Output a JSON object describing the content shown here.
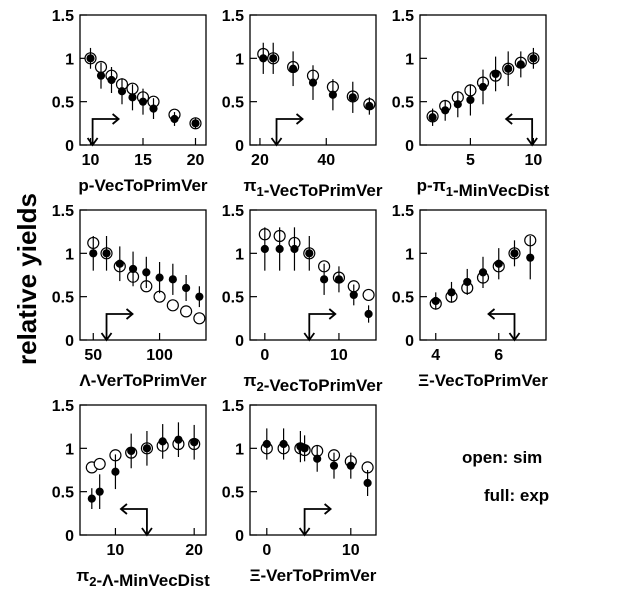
{
  "figure": {
    "ylabel": "relative yields",
    "legend_open": "open: sim",
    "legend_full": "full: exp"
  },
  "chart_data": [
    {
      "type": "scatter",
      "title": "p-VecToPrimVer",
      "xlim": [
        9,
        21
      ],
      "ylim": [
        0,
        1.5
      ],
      "xticks": [
        10,
        15,
        20
      ],
      "yticks": [
        0,
        0.5,
        1,
        1.5
      ],
      "cut": {
        "x": 10.2,
        "direction": "right"
      },
      "series": [
        {
          "name": "sim",
          "style": "open",
          "x": [
            10,
            11,
            12,
            13,
            14,
            15,
            16,
            18,
            20
          ],
          "y": [
            1.0,
            0.9,
            0.8,
            0.7,
            0.65,
            0.55,
            0.5,
            0.35,
            0.25
          ]
        },
        {
          "name": "exp",
          "style": "full",
          "x": [
            10,
            11,
            12,
            13,
            14,
            15,
            16,
            18,
            20
          ],
          "y": [
            1.0,
            0.8,
            0.75,
            0.62,
            0.55,
            0.5,
            0.42,
            0.3,
            0.25
          ],
          "err": [
            0.12,
            0.15,
            0.15,
            0.15,
            0.15,
            0.15,
            0.12,
            0.08,
            0.06
          ]
        }
      ]
    },
    {
      "type": "scatter",
      "title": "π1-VecToPrimVer",
      "xlim": [
        17,
        55
      ],
      "ylim": [
        0,
        1.5
      ],
      "xticks": [
        20,
        40
      ],
      "yticks": [
        0,
        0.5,
        1,
        1.5
      ],
      "cut": {
        "x": 25,
        "direction": "right"
      },
      "series": [
        {
          "name": "sim",
          "style": "open",
          "x": [
            21,
            24,
            30,
            36,
            42,
            48,
            53
          ],
          "y": [
            1.05,
            1.0,
            0.9,
            0.8,
            0.67,
            0.56,
            0.47
          ]
        },
        {
          "name": "exp",
          "style": "full",
          "x": [
            21,
            24,
            30,
            36,
            42,
            48,
            53
          ],
          "y": [
            1.0,
            1.0,
            0.88,
            0.72,
            0.58,
            0.55,
            0.45
          ],
          "err": [
            0.18,
            0.18,
            0.2,
            0.2,
            0.18,
            0.18,
            0.1
          ]
        }
      ]
    },
    {
      "type": "scatter",
      "title": "p-π1-MinVecDist",
      "xlim": [
        1,
        11
      ],
      "ylim": [
        0,
        1.5
      ],
      "xticks": [
        5,
        10
      ],
      "yticks": [
        0,
        0.5,
        1,
        1.5
      ],
      "cut": {
        "x": 9.9,
        "direction": "left"
      },
      "series": [
        {
          "name": "sim",
          "style": "open",
          "x": [
            2,
            3,
            4,
            5,
            6,
            7,
            8,
            9,
            10
          ],
          "y": [
            0.33,
            0.45,
            0.55,
            0.63,
            0.72,
            0.8,
            0.88,
            0.95,
            1.0
          ]
        },
        {
          "name": "exp",
          "style": "full",
          "x": [
            2,
            3,
            4,
            5,
            6,
            7,
            8,
            9,
            10
          ],
          "y": [
            0.32,
            0.4,
            0.47,
            0.52,
            0.67,
            0.82,
            0.88,
            0.93,
            1.0
          ],
          "err": [
            0.1,
            0.12,
            0.15,
            0.18,
            0.2,
            0.2,
            0.2,
            0.15,
            0.12
          ]
        }
      ]
    },
    {
      "type": "scatter",
      "title": "Λ-VerToPrimVer",
      "xlim": [
        40,
        135
      ],
      "ylim": [
        0,
        1.5
      ],
      "xticks": [
        50,
        100
      ],
      "yticks": [
        0,
        0.5,
        1,
        1.5
      ],
      "cut": {
        "x": 60,
        "direction": "right"
      },
      "series": [
        {
          "name": "sim",
          "style": "open",
          "x": [
            50,
            60,
            70,
            80,
            90,
            100,
            110,
            120,
            130
          ],
          "y": [
            1.12,
            1.0,
            0.85,
            0.73,
            0.62,
            0.5,
            0.4,
            0.33,
            0.25
          ]
        },
        {
          "name": "exp",
          "style": "full",
          "x": [
            50,
            60,
            70,
            80,
            90,
            100,
            110,
            120,
            130
          ],
          "y": [
            1.0,
            1.0,
            0.88,
            0.82,
            0.78,
            0.72,
            0.7,
            0.6,
            0.5
          ],
          "err": [
            0.2,
            0.2,
            0.2,
            0.2,
            0.18,
            0.18,
            0.18,
            0.15,
            0.12
          ]
        }
      ]
    },
    {
      "type": "scatter",
      "title": "π2-VecToPrimVer",
      "xlim": [
        -2,
        15
      ],
      "ylim": [
        0,
        1.5
      ],
      "xticks": [
        0,
        10
      ],
      "yticks": [
        0,
        0.5,
        1,
        1.5
      ],
      "cut": {
        "x": 6,
        "direction": "right"
      },
      "series": [
        {
          "name": "sim",
          "style": "open",
          "x": [
            0,
            2,
            4,
            6,
            8,
            10,
            12,
            14
          ],
          "y": [
            1.22,
            1.2,
            1.12,
            1.0,
            0.85,
            0.72,
            0.62,
            0.52
          ]
        },
        {
          "name": "exp",
          "style": "full",
          "x": [
            0,
            2,
            4,
            6,
            8,
            10,
            12,
            14
          ],
          "y": [
            1.05,
            1.05,
            1.05,
            1.0,
            0.7,
            0.7,
            0.52,
            0.3
          ],
          "err": [
            0.25,
            0.25,
            0.25,
            0.2,
            0.18,
            0.15,
            0.12,
            0.1
          ]
        }
      ]
    },
    {
      "type": "scatter",
      "title": "Ξ-VecToPrimVer",
      "xlim": [
        3.5,
        7.5
      ],
      "ylim": [
        0,
        1.5
      ],
      "xticks": [
        4,
        6
      ],
      "yticks": [
        0,
        0.5,
        1,
        1.5
      ],
      "cut": {
        "x": 6.5,
        "direction": "left"
      },
      "series": [
        {
          "name": "sim",
          "style": "open",
          "x": [
            4,
            4.5,
            5,
            5.5,
            6,
            6.5,
            7
          ],
          "y": [
            0.42,
            0.5,
            0.6,
            0.72,
            0.85,
            1.0,
            1.15
          ]
        },
        {
          "name": "exp",
          "style": "full",
          "x": [
            4,
            4.5,
            5,
            5.5,
            6,
            6.5,
            7
          ],
          "y": [
            0.45,
            0.55,
            0.67,
            0.78,
            0.88,
            1.0,
            0.95
          ],
          "err": [
            0.1,
            0.12,
            0.15,
            0.18,
            0.18,
            0.15,
            0.25
          ]
        }
      ]
    },
    {
      "type": "scatter",
      "title": "π2-Λ-MinVecDist",
      "xlim": [
        5.5,
        21.5
      ],
      "ylim": [
        0,
        1.5
      ],
      "xticks": [
        10,
        20
      ],
      "yticks": [
        0,
        0.5,
        1,
        1.5
      ],
      "cut": {
        "x": 14,
        "direction": "left"
      },
      "series": [
        {
          "name": "sim",
          "style": "open",
          "x": [
            7,
            8,
            10,
            12,
            14,
            16,
            18,
            20
          ],
          "y": [
            0.78,
            0.82,
            0.92,
            0.95,
            1.0,
            1.03,
            1.05,
            1.05
          ]
        },
        {
          "name": "exp",
          "style": "full",
          "x": [
            7,
            8,
            10,
            12,
            14,
            16,
            18,
            20
          ],
          "y": [
            0.42,
            0.5,
            0.73,
            0.97,
            1.0,
            1.08,
            1.1,
            1.07
          ],
          "err": [
            0.12,
            0.2,
            0.2,
            0.2,
            0.2,
            0.2,
            0.2,
            0.2
          ]
        }
      ]
    },
    {
      "type": "scatter",
      "title": "Ξ-VerToPrimVer",
      "xlim": [
        -2,
        13
      ],
      "ylim": [
        0,
        1.5
      ],
      "xticks": [
        0,
        10
      ],
      "yticks": [
        0,
        0.5,
        1,
        1.5
      ],
      "cut": {
        "x": 4.5,
        "direction": "right"
      },
      "series": [
        {
          "name": "sim",
          "style": "open",
          "x": [
            0,
            2,
            4,
            4.5,
            6,
            8,
            10,
            12
          ],
          "y": [
            1.0,
            1.0,
            1.0,
            0.98,
            0.97,
            0.92,
            0.85,
            0.78
          ]
        },
        {
          "name": "exp",
          "style": "full",
          "x": [
            0,
            2,
            4,
            4.5,
            6,
            8,
            10,
            12
          ],
          "y": [
            1.05,
            1.05,
            1.02,
            1.0,
            0.88,
            0.8,
            0.8,
            0.6
          ],
          "err": [
            0.18,
            0.18,
            0.18,
            0.15,
            0.15,
            0.15,
            0.15,
            0.15
          ]
        }
      ]
    }
  ]
}
